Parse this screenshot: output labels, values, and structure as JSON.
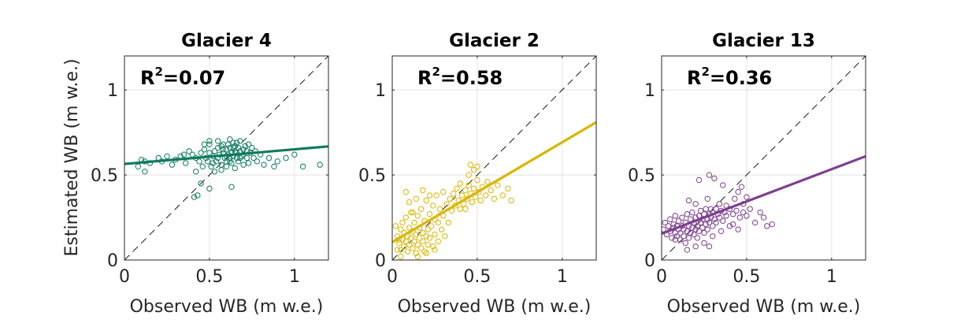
{
  "figure": {
    "ylabel": "Estimated WB (m w.e.)"
  },
  "chart_data": [
    {
      "type": "scatter",
      "title": "Glacier 4",
      "xlabel": "Observed WB (m w.e.)",
      "ylabel": "Estimated WB (m w.e.)",
      "xlim": [
        0,
        1.2
      ],
      "ylim": [
        0,
        1.2
      ],
      "xticks": [
        0,
        0.5,
        1
      ],
      "xtick_labels": [
        "0",
        "0.5",
        "1"
      ],
      "yticks": [
        0,
        0.5,
        1
      ],
      "ytick_labels": [
        "0",
        "0.5",
        "1"
      ],
      "grid": true,
      "color": "#0f7a5f",
      "r2_label": "R",
      "r2_sup": "2",
      "r2_value": "=0.07",
      "fit_line": {
        "x": [
          0,
          1.2
        ],
        "y": [
          0.565,
          0.668
        ]
      },
      "one_to_one_line": true,
      "points": [
        [
          0.1,
          0.59
        ],
        [
          0.12,
          0.58
        ],
        [
          0.08,
          0.55
        ],
        [
          0.12,
          0.52
        ],
        [
          0.15,
          0.57
        ],
        [
          0.2,
          0.6
        ],
        [
          0.22,
          0.58
        ],
        [
          0.25,
          0.61
        ],
        [
          0.28,
          0.56
        ],
        [
          0.3,
          0.59
        ],
        [
          0.33,
          0.61
        ],
        [
          0.35,
          0.62
        ],
        [
          0.36,
          0.57
        ],
        [
          0.38,
          0.64
        ],
        [
          0.4,
          0.62
        ],
        [
          0.42,
          0.6
        ],
        [
          0.42,
          0.52
        ],
        [
          0.44,
          0.58
        ],
        [
          0.45,
          0.63
        ],
        [
          0.46,
          0.55
        ],
        [
          0.47,
          0.65
        ],
        [
          0.48,
          0.6
        ],
        [
          0.49,
          0.58
        ],
        [
          0.5,
          0.63
        ],
        [
          0.5,
          0.68
        ],
        [
          0.51,
          0.55
        ],
        [
          0.52,
          0.61
        ],
        [
          0.53,
          0.64
        ],
        [
          0.54,
          0.58
        ],
        [
          0.55,
          0.66
        ],
        [
          0.55,
          0.6
        ],
        [
          0.56,
          0.62
        ],
        [
          0.57,
          0.56
        ],
        [
          0.57,
          0.67
        ],
        [
          0.58,
          0.63
        ],
        [
          0.59,
          0.6
        ],
        [
          0.6,
          0.65
        ],
        [
          0.6,
          0.58
        ],
        [
          0.61,
          0.68
        ],
        [
          0.61,
          0.62
        ],
        [
          0.62,
          0.6
        ],
        [
          0.62,
          0.66
        ],
        [
          0.63,
          0.63
        ],
        [
          0.63,
          0.57
        ],
        [
          0.64,
          0.69
        ],
        [
          0.64,
          0.61
        ],
        [
          0.65,
          0.64
        ],
        [
          0.65,
          0.67
        ],
        [
          0.66,
          0.6
        ],
        [
          0.66,
          0.63
        ],
        [
          0.67,
          0.66
        ],
        [
          0.67,
          0.58
        ],
        [
          0.68,
          0.64
        ],
        [
          0.68,
          0.7
        ],
        [
          0.69,
          0.61
        ],
        [
          0.7,
          0.65
        ],
        [
          0.7,
          0.62
        ],
        [
          0.71,
          0.67
        ],
        [
          0.72,
          0.6
        ],
        [
          0.72,
          0.64
        ],
        [
          0.73,
          0.57
        ],
        [
          0.74,
          0.63
        ],
        [
          0.75,
          0.66
        ],
        [
          0.76,
          0.6
        ],
        [
          0.77,
          0.64
        ],
        [
          0.78,
          0.58
        ],
        [
          0.8,
          0.62
        ],
        [
          0.82,
          0.56
        ],
        [
          0.85,
          0.6
        ],
        [
          0.88,
          0.55
        ],
        [
          0.5,
          0.7
        ],
        [
          0.55,
          0.7
        ],
        [
          0.58,
          0.68
        ],
        [
          0.62,
          0.71
        ],
        [
          0.66,
          0.69
        ],
        [
          0.53,
          0.52
        ],
        [
          0.57,
          0.53
        ],
        [
          0.6,
          0.55
        ],
        [
          0.65,
          0.54
        ],
        [
          0.7,
          0.56
        ],
        [
          0.47,
          0.68
        ],
        [
          0.45,
          0.45
        ],
        [
          0.5,
          0.42
        ],
        [
          0.41,
          0.37
        ],
        [
          0.43,
          0.38
        ],
        [
          0.63,
          0.43
        ],
        [
          1.0,
          0.62
        ],
        [
          1.05,
          0.55
        ],
        [
          1.15,
          0.56
        ],
        [
          0.95,
          0.6
        ],
        [
          0.9,
          0.58
        ],
        [
          0.58,
          0.65
        ],
        [
          0.62,
          0.58
        ],
        [
          0.68,
          0.6
        ],
        [
          0.73,
          0.68
        ],
        [
          0.52,
          0.57
        ],
        [
          0.6,
          0.61
        ],
        [
          0.64,
          0.66
        ]
      ]
    },
    {
      "type": "scatter",
      "title": "Glacier 2",
      "xlabel": "Observed WB (m w.e.)",
      "ylabel": "",
      "xlim": [
        0,
        1.2
      ],
      "ylim": [
        0,
        1.2
      ],
      "xticks": [
        0,
        0.5,
        1
      ],
      "xtick_labels": [
        "0",
        "0.5",
        "1"
      ],
      "yticks": [
        0,
        0.5,
        1
      ],
      "ytick_labels": [
        "0",
        "0.5",
        "1"
      ],
      "grid": true,
      "color": "#d9b600",
      "r2_label": "R",
      "r2_sup": "2",
      "r2_value": "=0.58",
      "fit_line": {
        "x": [
          0,
          1.2
        ],
        "y": [
          0.105,
          0.81
        ]
      },
      "one_to_one_line": true,
      "points": [
        [
          0.02,
          0.2
        ],
        [
          0.03,
          0.14
        ],
        [
          0.04,
          0.1
        ],
        [
          0.05,
          0.18
        ],
        [
          0.05,
          0.06
        ],
        [
          0.06,
          0.22
        ],
        [
          0.06,
          0.12
        ],
        [
          0.07,
          0.08
        ],
        [
          0.07,
          0.16
        ],
        [
          0.08,
          0.11
        ],
        [
          0.08,
          0.25
        ],
        [
          0.09,
          0.14
        ],
        [
          0.09,
          0.05
        ],
        [
          0.1,
          0.19
        ],
        [
          0.1,
          0.09
        ],
        [
          0.11,
          0.13
        ],
        [
          0.11,
          0.28
        ],
        [
          0.12,
          0.07
        ],
        [
          0.12,
          0.17
        ],
        [
          0.13,
          0.11
        ],
        [
          0.13,
          0.22
        ],
        [
          0.14,
          0.15
        ],
        [
          0.14,
          0.04
        ],
        [
          0.15,
          0.09
        ],
        [
          0.15,
          0.26
        ],
        [
          0.16,
          0.13
        ],
        [
          0.16,
          0.19
        ],
        [
          0.17,
          0.07
        ],
        [
          0.17,
          0.3
        ],
        [
          0.18,
          0.16
        ],
        [
          0.18,
          0.11
        ],
        [
          0.19,
          0.23
        ],
        [
          0.19,
          0.05
        ],
        [
          0.2,
          0.14
        ],
        [
          0.2,
          0.35
        ],
        [
          0.21,
          0.18
        ],
        [
          0.21,
          0.09
        ],
        [
          0.22,
          0.27
        ],
        [
          0.22,
          0.13
        ],
        [
          0.23,
          0.2
        ],
        [
          0.24,
          0.32
        ],
        [
          0.24,
          0.08
        ],
        [
          0.25,
          0.24
        ],
        [
          0.25,
          0.15
        ],
        [
          0.26,
          0.38
        ],
        [
          0.27,
          0.22
        ],
        [
          0.27,
          0.11
        ],
        [
          0.28,
          0.3
        ],
        [
          0.29,
          0.18
        ],
        [
          0.3,
          0.4
        ],
        [
          0.3,
          0.26
        ],
        [
          0.31,
          0.14
        ],
        [
          0.32,
          0.33
        ],
        [
          0.33,
          0.22
        ],
        [
          0.34,
          0.36
        ],
        [
          0.35,
          0.29
        ],
        [
          0.36,
          0.39
        ],
        [
          0.37,
          0.32
        ],
        [
          0.38,
          0.42
        ],
        [
          0.39,
          0.35
        ],
        [
          0.4,
          0.3
        ],
        [
          0.4,
          0.45
        ],
        [
          0.41,
          0.38
        ],
        [
          0.42,
          0.33
        ],
        [
          0.43,
          0.41
        ],
        [
          0.44,
          0.36
        ],
        [
          0.45,
          0.44
        ],
        [
          0.45,
          0.5
        ],
        [
          0.46,
          0.39
        ],
        [
          0.47,
          0.34
        ],
        [
          0.48,
          0.42
        ],
        [
          0.49,
          0.37
        ],
        [
          0.5,
          0.47
        ],
        [
          0.5,
          0.55
        ],
        [
          0.51,
          0.4
        ],
        [
          0.52,
          0.35
        ],
        [
          0.53,
          0.43
        ],
        [
          0.55,
          0.38
        ],
        [
          0.56,
          0.46
        ],
        [
          0.58,
          0.41
        ],
        [
          0.6,
          0.36
        ],
        [
          0.62,
          0.44
        ],
        [
          0.65,
          0.38
        ],
        [
          0.68,
          0.42
        ],
        [
          0.7,
          0.35
        ],
        [
          0.46,
          0.56
        ],
        [
          0.48,
          0.53
        ],
        [
          0.43,
          0.3
        ],
        [
          0.08,
          0.4
        ],
        [
          0.1,
          0.34
        ],
        [
          0.14,
          0.36
        ],
        [
          0.18,
          0.41
        ],
        [
          0.22,
          0.38
        ],
        [
          0.12,
          0.28
        ],
        [
          0.05,
          0.02
        ],
        [
          0.15,
          0.02
        ],
        [
          0.2,
          0.04
        ],
        [
          0.25,
          0.06
        ],
        [
          0.04,
          0.12
        ],
        [
          0.03,
          0.06
        ]
      ]
    },
    {
      "type": "scatter",
      "title": "Glacier 13",
      "xlabel": "Observed WB (m w.e.)",
      "ylabel": "",
      "xlim": [
        0,
        1.2
      ],
      "ylim": [
        0,
        1.2
      ],
      "xticks": [
        0,
        0.5,
        1
      ],
      "xtick_labels": [
        "0",
        "0.5",
        "1"
      ],
      "yticks": [
        0,
        0.5,
        1
      ],
      "ytick_labels": [
        "0",
        "0.5",
        "1"
      ],
      "grid": true,
      "color": "#7e3f8f",
      "r2_label": "R",
      "r2_sup": "2",
      "r2_value": "=0.36",
      "fit_line": {
        "x": [
          0,
          1.2
        ],
        "y": [
          0.155,
          0.61
        ]
      },
      "one_to_one_line": true,
      "points": [
        [
          0.01,
          0.18
        ],
        [
          0.02,
          0.22
        ],
        [
          0.03,
          0.15
        ],
        [
          0.04,
          0.2
        ],
        [
          0.05,
          0.17
        ],
        [
          0.05,
          0.24
        ],
        [
          0.06,
          0.13
        ],
        [
          0.07,
          0.19
        ],
        [
          0.07,
          0.21
        ],
        [
          0.08,
          0.16
        ],
        [
          0.08,
          0.26
        ],
        [
          0.09,
          0.14
        ],
        [
          0.09,
          0.2
        ],
        [
          0.1,
          0.18
        ],
        [
          0.1,
          0.23
        ],
        [
          0.11,
          0.12
        ],
        [
          0.11,
          0.16
        ],
        [
          0.12,
          0.2
        ],
        [
          0.12,
          0.25
        ],
        [
          0.13,
          0.14
        ],
        [
          0.13,
          0.18
        ],
        [
          0.14,
          0.22
        ],
        [
          0.14,
          0.1
        ],
        [
          0.15,
          0.17
        ],
        [
          0.15,
          0.27
        ],
        [
          0.16,
          0.2
        ],
        [
          0.16,
          0.13
        ],
        [
          0.17,
          0.24
        ],
        [
          0.17,
          0.16
        ],
        [
          0.18,
          0.19
        ],
        [
          0.18,
          0.28
        ],
        [
          0.19,
          0.15
        ],
        [
          0.19,
          0.22
        ],
        [
          0.2,
          0.18
        ],
        [
          0.2,
          0.25
        ],
        [
          0.21,
          0.2
        ],
        [
          0.21,
          0.13
        ],
        [
          0.22,
          0.26
        ],
        [
          0.22,
          0.17
        ],
        [
          0.23,
          0.22
        ],
        [
          0.23,
          0.29
        ],
        [
          0.24,
          0.19
        ],
        [
          0.24,
          0.24
        ],
        [
          0.25,
          0.16
        ],
        [
          0.25,
          0.27
        ],
        [
          0.26,
          0.21
        ],
        [
          0.26,
          0.3
        ],
        [
          0.27,
          0.24
        ],
        [
          0.27,
          0.18
        ],
        [
          0.28,
          0.27
        ],
        [
          0.28,
          0.22
        ],
        [
          0.29,
          0.3
        ],
        [
          0.29,
          0.25
        ],
        [
          0.3,
          0.2
        ],
        [
          0.3,
          0.28
        ],
        [
          0.31,
          0.24
        ],
        [
          0.32,
          0.3
        ],
        [
          0.32,
          0.22
        ],
        [
          0.33,
          0.27
        ],
        [
          0.34,
          0.25
        ],
        [
          0.35,
          0.29
        ],
        [
          0.36,
          0.23
        ],
        [
          0.37,
          0.28
        ],
        [
          0.38,
          0.26
        ],
        [
          0.4,
          0.3
        ],
        [
          0.42,
          0.27
        ],
        [
          0.44,
          0.29
        ],
        [
          0.46,
          0.25
        ],
        [
          0.48,
          0.28
        ],
        [
          0.5,
          0.26
        ],
        [
          0.52,
          0.3
        ],
        [
          0.55,
          0.22
        ],
        [
          0.58,
          0.28
        ],
        [
          0.6,
          0.25
        ],
        [
          0.65,
          0.21
        ],
        [
          0.62,
          0.2
        ],
        [
          0.45,
          0.18
        ],
        [
          0.42,
          0.21
        ],
        [
          0.4,
          0.2
        ],
        [
          0.3,
          0.14
        ],
        [
          0.35,
          0.17
        ],
        [
          0.25,
          0.1
        ],
        [
          0.28,
          0.08
        ],
        [
          0.2,
          0.08
        ],
        [
          0.15,
          0.06
        ],
        [
          0.5,
          0.37
        ],
        [
          0.45,
          0.4
        ],
        [
          0.47,
          0.43
        ],
        [
          0.43,
          0.36
        ],
        [
          0.38,
          0.32
        ],
        [
          0.22,
          0.47
        ],
        [
          0.28,
          0.5
        ],
        [
          0.31,
          0.48
        ],
        [
          0.36,
          0.44
        ],
        [
          0.27,
          0.36
        ],
        [
          0.2,
          0.33
        ],
        [
          0.16,
          0.35
        ],
        [
          0.48,
          0.33
        ],
        [
          0.34,
          0.33
        ],
        [
          0.08,
          0.12
        ]
      ]
    }
  ]
}
